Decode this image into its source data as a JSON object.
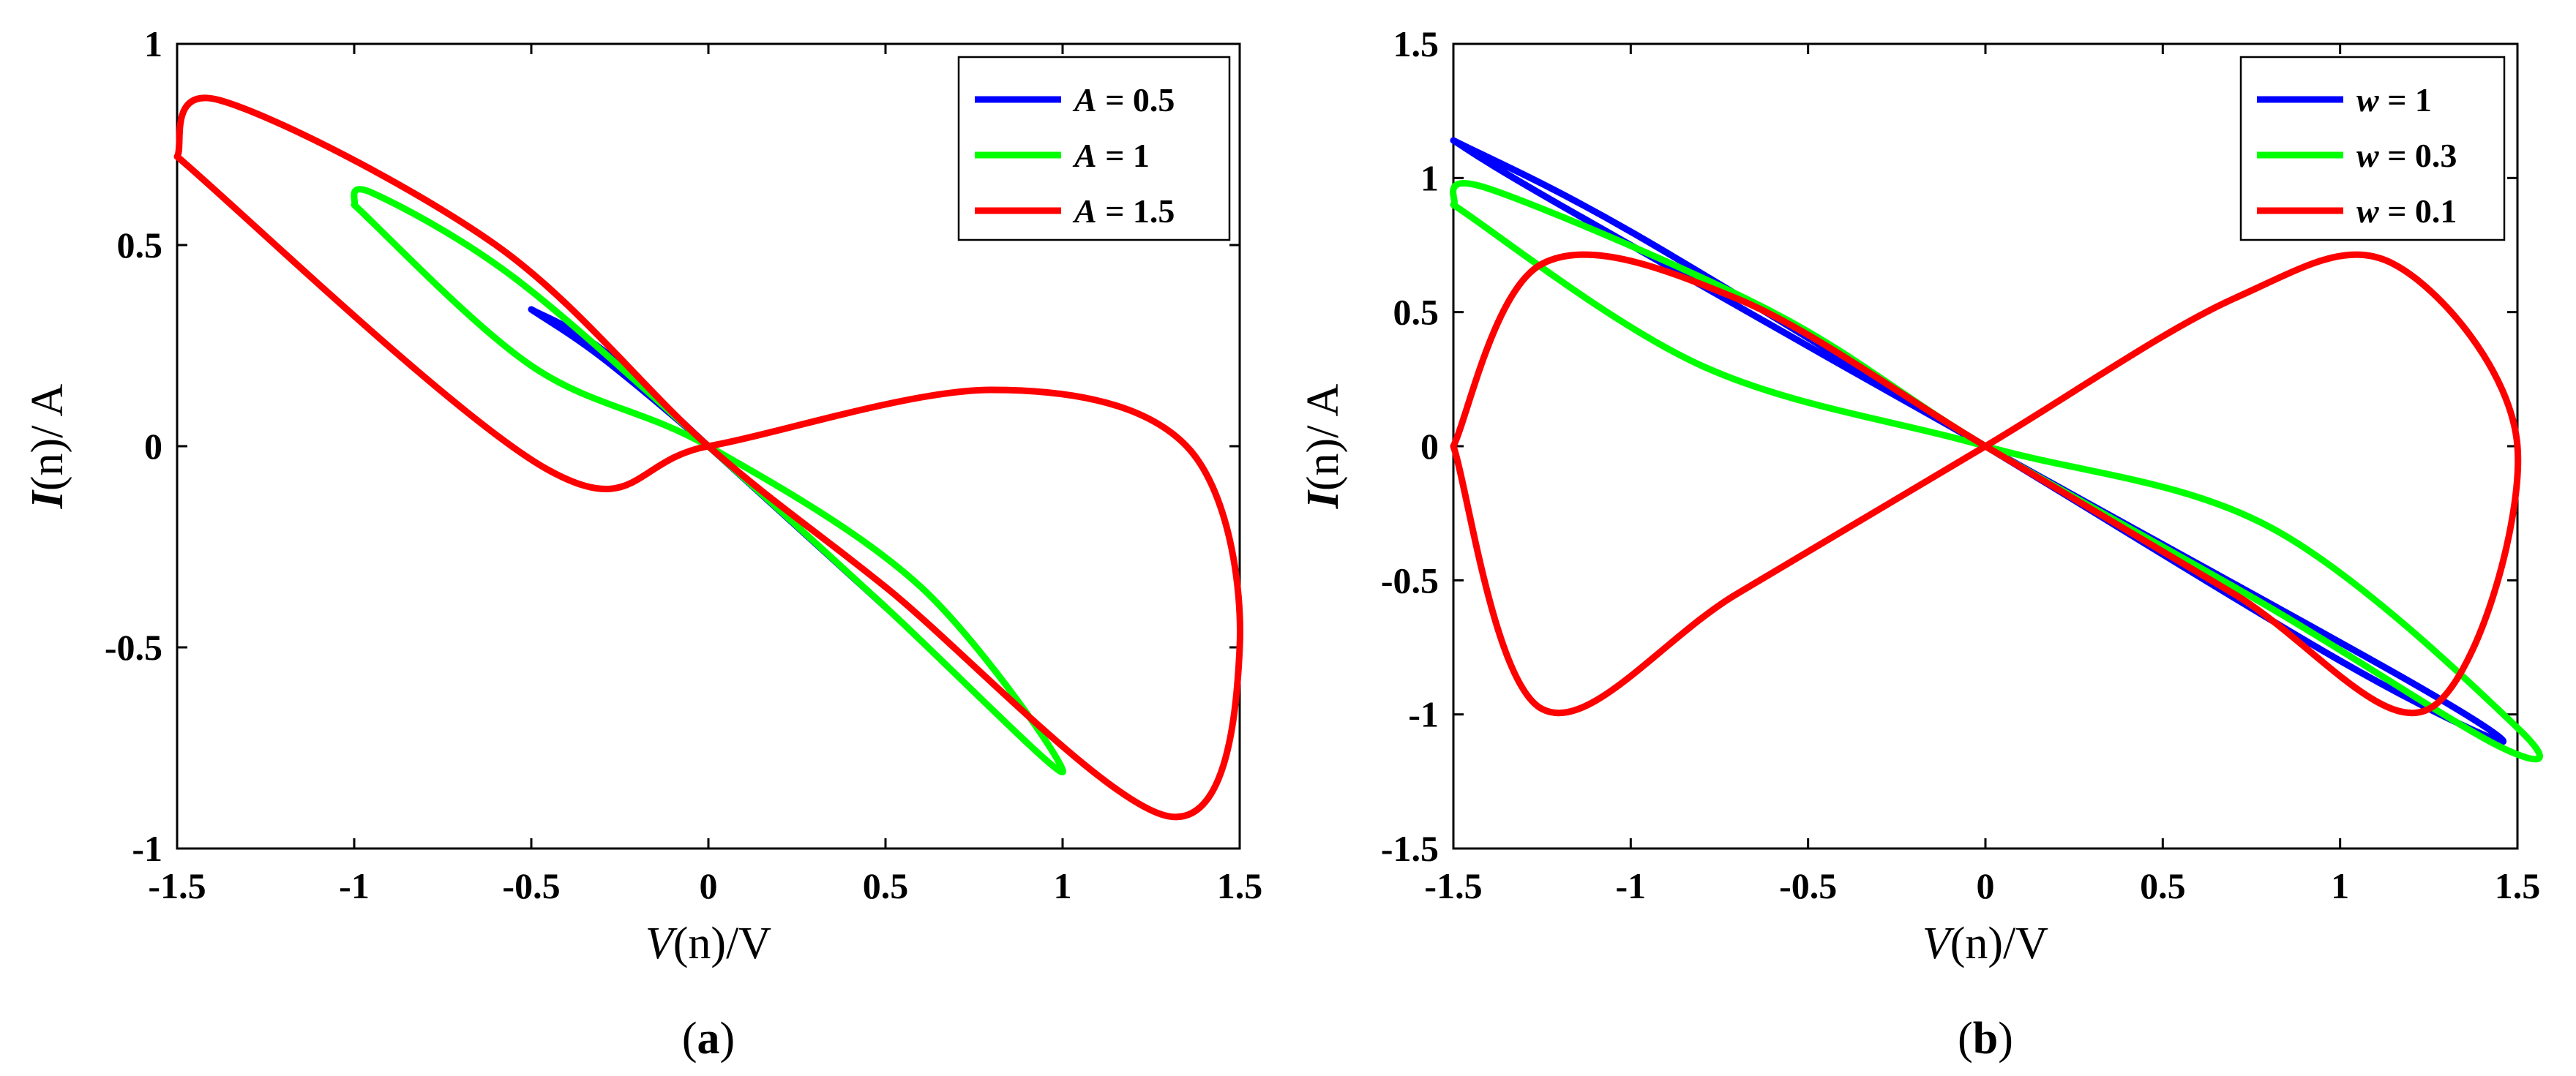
{
  "chart_data": [
    {
      "type": "line",
      "panel": "a",
      "caption": {
        "open": "(",
        "letter": "a",
        "close": ")"
      },
      "xlabel": {
        "sym": "V",
        "rest": "(n)/V"
      },
      "ylabel": {
        "sym": "I",
        "rest": "(n)/ A"
      },
      "xlim": [
        -1.5,
        1.5
      ],
      "ylim": [
        -1,
        1
      ],
      "xticks": [
        -1.5,
        -1,
        -0.5,
        0,
        0.5,
        1,
        1.5
      ],
      "xtick_labels": [
        "-1.5",
        "-1",
        "-0.5",
        "0",
        "0.5",
        "1",
        "1.5"
      ],
      "yticks": [
        -1,
        -0.5,
        0,
        0.5,
        1
      ],
      "ytick_labels": [
        "-1",
        "-0.5",
        "0",
        "0.5",
        "1"
      ],
      "legend_position": "top-right",
      "series": [
        {
          "name": "A = 0.5",
          "var": "A",
          "label_value": "= 0.5",
          "color": "#0000ff",
          "amplitude": 0.5,
          "pinched_loop": true,
          "points": [
            [
              -0.5,
              0.34
            ],
            [
              -0.3,
              0.22
            ],
            [
              0,
              0
            ],
            [
              0.25,
              -0.2
            ],
            [
              0.5,
              -0.4
            ],
            [
              0.3,
              -0.24
            ],
            [
              0,
              0
            ],
            [
              -0.3,
              0.24
            ],
            [
              -0.5,
              0.34
            ]
          ]
        },
        {
          "name": "A = 1",
          "var": "A",
          "label_value": "= 1",
          "color": "#00ff00",
          "amplitude": 1,
          "pinched_loop": true,
          "points": [
            [
              -1.0,
              0.6
            ],
            [
              -0.95,
              0.63
            ],
            [
              -0.55,
              0.42
            ],
            [
              0,
              0
            ],
            [
              0.5,
              -0.4
            ],
            [
              1.0,
              -0.81
            ],
            [
              0.6,
              -0.35
            ],
            [
              0,
              0
            ],
            [
              -0.5,
              0.2
            ],
            [
              -1.0,
              0.6
            ]
          ]
        },
        {
          "name": "A = 1.5",
          "var": "A",
          "label_value": "= 1.5",
          "color": "#ff0000",
          "amplitude": 1.5,
          "pinched_loop": true,
          "points": [
            [
              -1.5,
              0.72
            ],
            [
              -1.38,
              0.86
            ],
            [
              -0.6,
              0.5
            ],
            [
              0,
              0
            ],
            [
              0.5,
              -0.35
            ],
            [
              1.3,
              -0.92
            ],
            [
              1.5,
              -0.5
            ],
            [
              1.35,
              0.0
            ],
            [
              0.8,
              0.14
            ],
            [
              0,
              0
            ],
            [
              -0.45,
              -0.06
            ],
            [
              -1.5,
              0.72
            ]
          ]
        }
      ]
    },
    {
      "type": "line",
      "panel": "b",
      "caption": {
        "open": "(",
        "letter": "b",
        "close": ")"
      },
      "xlabel": {
        "sym": "V",
        "rest": "(n)/V"
      },
      "ylabel": {
        "sym": "I",
        "rest": "(n)/ A"
      },
      "xlim": [
        -1.5,
        1.5
      ],
      "ylim": [
        -1.5,
        1.5
      ],
      "xticks": [
        -1.5,
        -1,
        -0.5,
        0,
        0.5,
        1,
        1.5
      ],
      "xtick_labels": [
        "-1.5",
        "-1",
        "-0.5",
        "0",
        "0.5",
        "1",
        "1.5"
      ],
      "yticks": [
        -1.5,
        -1,
        -0.5,
        0,
        0.5,
        1,
        1.5
      ],
      "ytick_labels": [
        "-1.5",
        "-1",
        "-0.5",
        "0",
        "0.5",
        "1",
        "1.5"
      ],
      "legend_position": "top-right",
      "series": [
        {
          "name": "w = 1",
          "var": "w",
          "label_value": "= 1",
          "color": "#0000ff",
          "frequency": 1,
          "pinched_loop": true,
          "points": [
            [
              -1.5,
              1.14
            ],
            [
              -1.0,
              0.8
            ],
            [
              0,
              0
            ],
            [
              1.0,
              -0.8
            ],
            [
              1.45,
              -1.1
            ],
            [
              1.2,
              -0.88
            ],
            [
              0,
              0
            ],
            [
              -1.2,
              0.9
            ],
            [
              -1.5,
              1.14
            ]
          ]
        },
        {
          "name": "w = 0.3",
          "var": "w",
          "label_value": "= 0.3",
          "color": "#00ff00",
          "frequency": 0.3,
          "pinched_loop": true,
          "points": [
            [
              -1.5,
              0.9
            ],
            [
              -1.4,
              0.96
            ],
            [
              -0.6,
              0.5
            ],
            [
              0,
              0
            ],
            [
              0.8,
              -0.6
            ],
            [
              1.45,
              -1.12
            ],
            [
              1.5,
              -1.05
            ],
            [
              0.8,
              -0.3
            ],
            [
              0,
              0
            ],
            [
              -0.8,
              0.3
            ],
            [
              -1.5,
              0.9
            ]
          ]
        },
        {
          "name": "w = 0.1",
          "var": "w",
          "label_value": "= 0.1",
          "color": "#ff0000",
          "frequency": 0.1,
          "pinched_loop": true,
          "points": [
            [
              -1.5,
              0.0
            ],
            [
              -1.25,
              0.68
            ],
            [
              -0.7,
              0.55
            ],
            [
              0,
              0
            ],
            [
              0.7,
              -0.55
            ],
            [
              1.25,
              -0.98
            ],
            [
              1.5,
              0.0
            ],
            [
              1.15,
              0.68
            ],
            [
              0.7,
              0.55
            ],
            [
              0,
              0
            ],
            [
              -0.7,
              -0.55
            ],
            [
              -1.25,
              -0.98
            ],
            [
              -1.5,
              0.0
            ]
          ]
        }
      ]
    }
  ]
}
